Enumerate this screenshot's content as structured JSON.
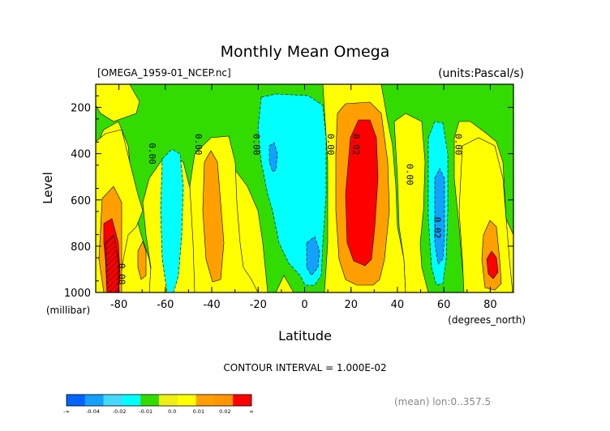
{
  "chart_data": {
    "type": "heatmap",
    "title": "Monthly Mean Omega",
    "file_label": "[OMEGA_1959-01_NCEP.nc]",
    "units_label": "(units:Pascal/s)",
    "xlabel": "Latitude",
    "xunits": "(degrees_north)",
    "ylabel": "Level",
    "yunits": "(millibar)",
    "xlim": [
      -90,
      90
    ],
    "ylim": [
      1000,
      100
    ],
    "x_ticks": [
      -80,
      -60,
      -40,
      -20,
      0,
      20,
      40,
      60,
      80
    ],
    "y_ticks": [
      200,
      400,
      600,
      800,
      1000
    ],
    "contour_interval_text": "CONTOUR INTERVAL = 1.000E-02",
    "mean_text": "(mean) lon:0..357.5",
    "colorbar": {
      "colors": [
        "#0064ff",
        "#14a0ff",
        "#46d7ff",
        "#00ffff",
        "#32dc00",
        "#f0f014",
        "#ffff00",
        "#ffa000",
        "#ff9600",
        "#ff0000"
      ],
      "labels": [
        "-∞",
        "-0.04",
        "-0.02",
        "-0.01",
        "0.0",
        "0.01",
        "0.02",
        "∞"
      ]
    },
    "contour_labels": [
      {
        "text": "0.00",
        "lat": -67,
        "lev": 400
      },
      {
        "text": "0.00",
        "lat": -47,
        "lev": 360
      },
      {
        "text": "0.00",
        "lat": -22,
        "lev": 360
      },
      {
        "text": "0.00",
        "lat": 10,
        "lev": 360
      },
      {
        "text": "0.02",
        "lat": 21,
        "lev": 360
      },
      {
        "text": "0.00",
        "lat": 44,
        "lev": 490
      },
      {
        "text": "0.00",
        "lat": 65,
        "lev": 360
      },
      {
        "text": "0.02",
        "lat": 56,
        "lev": 720
      },
      {
        "text": "0.00",
        "lat": -80,
        "lev": 920
      }
    ]
  }
}
